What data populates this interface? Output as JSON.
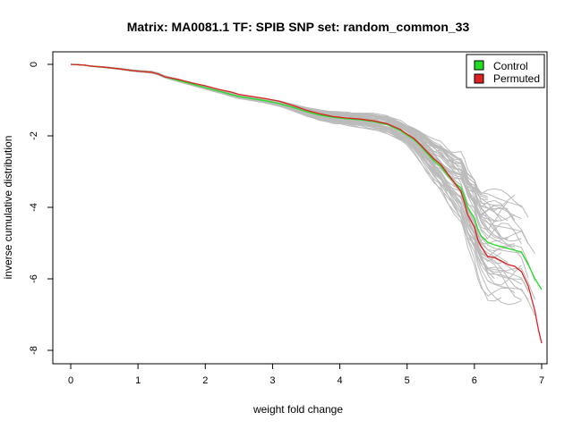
{
  "chart_data": {
    "type": "line",
    "title": "Matrix: MA0081.1 TF: SPIB SNP set: random_common_33",
    "xlabel": "weight fold change",
    "ylabel": "inverse cumulative distribution",
    "xlim": [
      0,
      7
    ],
    "ylim": [
      -8,
      0
    ],
    "x_ticks": [
      "0",
      "1",
      "2",
      "3",
      "4",
      "5",
      "6",
      "7"
    ],
    "y_ticks": [
      "0",
      "-2",
      "-4",
      "-6",
      "-8"
    ],
    "legend_position": "top-right",
    "legend": [
      {
        "label": "Control",
        "color": "#22dd22"
      },
      {
        "label": "Permuted",
        "color": "#dd2222"
      }
    ],
    "background_series": {
      "color": "#bbbbbb",
      "count": 50,
      "note_spread": "many grey permutation curves surrounding the main curves"
    },
    "series": [
      {
        "name": "Control",
        "color": "#22dd22",
        "x": [
          0,
          0.2,
          0.3,
          0.5,
          0.7,
          0.9,
          1.0,
          1.2,
          1.3,
          1.4,
          1.6,
          1.8,
          2.0,
          2.2,
          2.4,
          2.5,
          2.7,
          2.9,
          3.1,
          3.3,
          3.5,
          3.7,
          3.9,
          4.1,
          4.3,
          4.5,
          4.7,
          4.9,
          5.0,
          5.1,
          5.2,
          5.3,
          5.4,
          5.5,
          5.6,
          5.7,
          5.8,
          5.85,
          5.9,
          6.0,
          6.05,
          6.1,
          6.2,
          6.3,
          6.4,
          6.5,
          6.6,
          6.7,
          6.8,
          6.9,
          7.0
        ],
        "y": [
          0,
          -0.02,
          -0.05,
          -0.08,
          -0.12,
          -0.17,
          -0.19,
          -0.22,
          -0.27,
          -0.35,
          -0.45,
          -0.55,
          -0.65,
          -0.75,
          -0.85,
          -0.9,
          -0.96,
          -1.02,
          -1.1,
          -1.2,
          -1.32,
          -1.42,
          -1.48,
          -1.52,
          -1.55,
          -1.6,
          -1.68,
          -1.85,
          -1.98,
          -2.1,
          -2.28,
          -2.5,
          -2.7,
          -2.85,
          -3.1,
          -3.3,
          -3.45,
          -3.7,
          -4.0,
          -4.3,
          -4.6,
          -4.8,
          -4.98,
          -5.05,
          -5.1,
          -5.15,
          -5.2,
          -5.25,
          -5.6,
          -6.0,
          -6.3
        ]
      },
      {
        "name": "Permuted",
        "color": "#dd2222",
        "x": [
          0,
          0.2,
          0.3,
          0.5,
          0.7,
          0.9,
          1.0,
          1.2,
          1.3,
          1.4,
          1.6,
          1.8,
          2.0,
          2.2,
          2.4,
          2.5,
          2.7,
          2.9,
          3.1,
          3.3,
          3.5,
          3.7,
          3.9,
          4.1,
          4.3,
          4.5,
          4.7,
          4.9,
          5.0,
          5.1,
          5.2,
          5.3,
          5.4,
          5.5,
          5.6,
          5.7,
          5.8,
          5.85,
          5.9,
          6.0,
          6.05,
          6.1,
          6.2,
          6.3,
          6.4,
          6.5,
          6.6,
          6.7,
          6.8,
          6.9,
          6.95,
          7.0
        ],
        "y": [
          0,
          -0.02,
          -0.05,
          -0.08,
          -0.12,
          -0.17,
          -0.19,
          -0.22,
          -0.27,
          -0.35,
          -0.42,
          -0.52,
          -0.6,
          -0.7,
          -0.78,
          -0.84,
          -0.9,
          -0.96,
          -1.03,
          -1.15,
          -1.28,
          -1.38,
          -1.46,
          -1.5,
          -1.53,
          -1.58,
          -1.66,
          -1.82,
          -1.95,
          -2.07,
          -2.25,
          -2.45,
          -2.65,
          -2.8,
          -3.05,
          -3.3,
          -3.55,
          -3.85,
          -4.2,
          -4.55,
          -4.9,
          -5.1,
          -5.38,
          -5.4,
          -5.5,
          -5.6,
          -5.65,
          -5.8,
          -6.2,
          -6.9,
          -7.4,
          -7.8
        ]
      }
    ]
  }
}
